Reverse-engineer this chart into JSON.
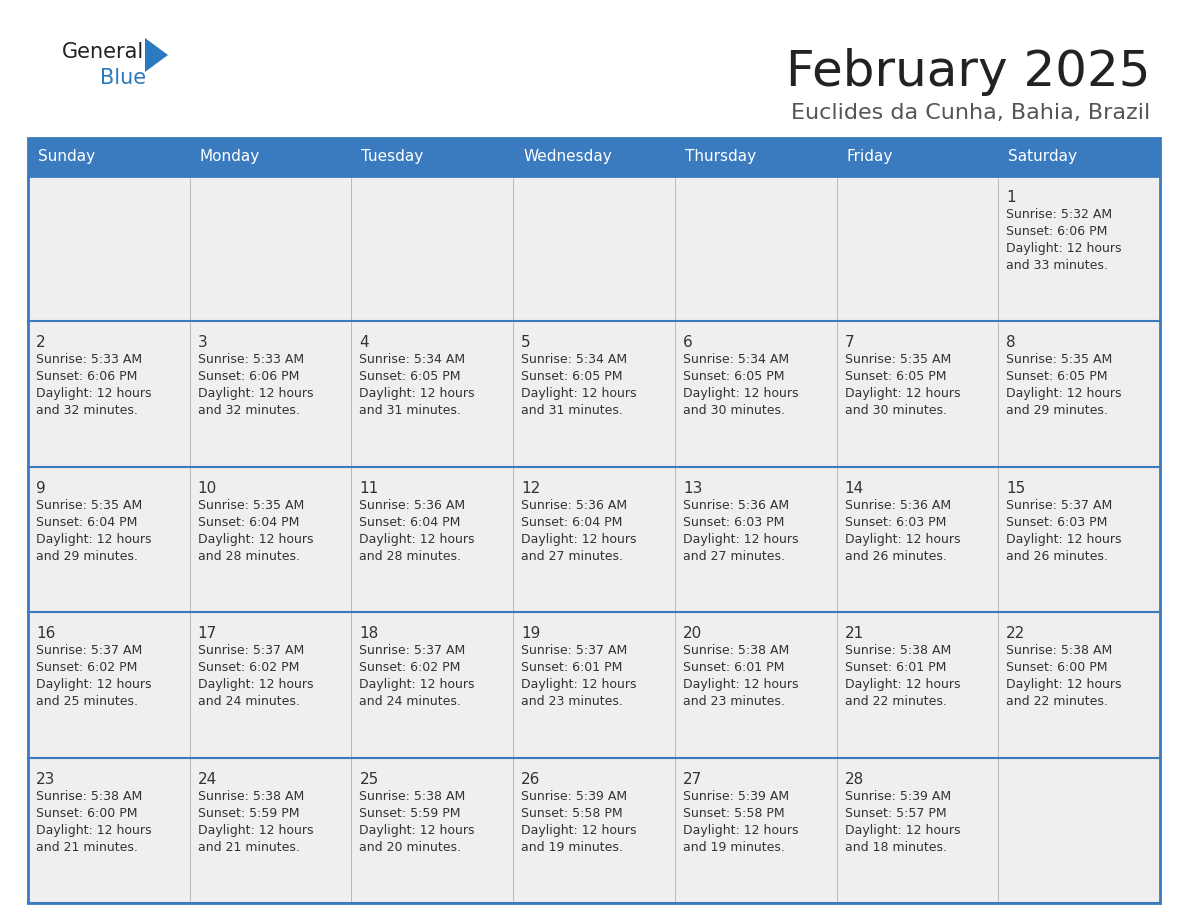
{
  "title": "February 2025",
  "subtitle": "Euclides da Cunha, Bahia, Brazil",
  "days_of_week": [
    "Sunday",
    "Monday",
    "Tuesday",
    "Wednesday",
    "Thursday",
    "Friday",
    "Saturday"
  ],
  "header_bg_color": "#3a7abf",
  "header_text_color": "#ffffff",
  "cell_bg_color": "#efefef",
  "border_color": "#3a7abf",
  "row_line_color": "#3a7abf",
  "text_color": "#333333",
  "date_color": "#333333",
  "logo_general_color": "#222222",
  "logo_blue_color": "#2b7abf",
  "background_color": "#ffffff",
  "title_color": "#222222",
  "subtitle_color": "#555555",
  "calendar_data": [
    [
      null,
      null,
      null,
      null,
      null,
      null,
      {
        "day": "1",
        "sunrise": "5:32 AM",
        "sunset": "6:06 PM",
        "daylight_line1": "12 hours",
        "daylight_line2": "and 33 minutes."
      }
    ],
    [
      {
        "day": "2",
        "sunrise": "5:33 AM",
        "sunset": "6:06 PM",
        "daylight_line1": "12 hours",
        "daylight_line2": "and 32 minutes."
      },
      {
        "day": "3",
        "sunrise": "5:33 AM",
        "sunset": "6:06 PM",
        "daylight_line1": "12 hours",
        "daylight_line2": "and 32 minutes."
      },
      {
        "day": "4",
        "sunrise": "5:34 AM",
        "sunset": "6:05 PM",
        "daylight_line1": "12 hours",
        "daylight_line2": "and 31 minutes."
      },
      {
        "day": "5",
        "sunrise": "5:34 AM",
        "sunset": "6:05 PM",
        "daylight_line1": "12 hours",
        "daylight_line2": "and 31 minutes."
      },
      {
        "day": "6",
        "sunrise": "5:34 AM",
        "sunset": "6:05 PM",
        "daylight_line1": "12 hours",
        "daylight_line2": "and 30 minutes."
      },
      {
        "day": "7",
        "sunrise": "5:35 AM",
        "sunset": "6:05 PM",
        "daylight_line1": "12 hours",
        "daylight_line2": "and 30 minutes."
      },
      {
        "day": "8",
        "sunrise": "5:35 AM",
        "sunset": "6:05 PM",
        "daylight_line1": "12 hours",
        "daylight_line2": "and 29 minutes."
      }
    ],
    [
      {
        "day": "9",
        "sunrise": "5:35 AM",
        "sunset": "6:04 PM",
        "daylight_line1": "12 hours",
        "daylight_line2": "and 29 minutes."
      },
      {
        "day": "10",
        "sunrise": "5:35 AM",
        "sunset": "6:04 PM",
        "daylight_line1": "12 hours",
        "daylight_line2": "and 28 minutes."
      },
      {
        "day": "11",
        "sunrise": "5:36 AM",
        "sunset": "6:04 PM",
        "daylight_line1": "12 hours",
        "daylight_line2": "and 28 minutes."
      },
      {
        "day": "12",
        "sunrise": "5:36 AM",
        "sunset": "6:04 PM",
        "daylight_line1": "12 hours",
        "daylight_line2": "and 27 minutes."
      },
      {
        "day": "13",
        "sunrise": "5:36 AM",
        "sunset": "6:03 PM",
        "daylight_line1": "12 hours",
        "daylight_line2": "and 27 minutes."
      },
      {
        "day": "14",
        "sunrise": "5:36 AM",
        "sunset": "6:03 PM",
        "daylight_line1": "12 hours",
        "daylight_line2": "and 26 minutes."
      },
      {
        "day": "15",
        "sunrise": "5:37 AM",
        "sunset": "6:03 PM",
        "daylight_line1": "12 hours",
        "daylight_line2": "and 26 minutes."
      }
    ],
    [
      {
        "day": "16",
        "sunrise": "5:37 AM",
        "sunset": "6:02 PM",
        "daylight_line1": "12 hours",
        "daylight_line2": "and 25 minutes."
      },
      {
        "day": "17",
        "sunrise": "5:37 AM",
        "sunset": "6:02 PM",
        "daylight_line1": "12 hours",
        "daylight_line2": "and 24 minutes."
      },
      {
        "day": "18",
        "sunrise": "5:37 AM",
        "sunset": "6:02 PM",
        "daylight_line1": "12 hours",
        "daylight_line2": "and 24 minutes."
      },
      {
        "day": "19",
        "sunrise": "5:37 AM",
        "sunset": "6:01 PM",
        "daylight_line1": "12 hours",
        "daylight_line2": "and 23 minutes."
      },
      {
        "day": "20",
        "sunrise": "5:38 AM",
        "sunset": "6:01 PM",
        "daylight_line1": "12 hours",
        "daylight_line2": "and 23 minutes."
      },
      {
        "day": "21",
        "sunrise": "5:38 AM",
        "sunset": "6:01 PM",
        "daylight_line1": "12 hours",
        "daylight_line2": "and 22 minutes."
      },
      {
        "day": "22",
        "sunrise": "5:38 AM",
        "sunset": "6:00 PM",
        "daylight_line1": "12 hours",
        "daylight_line2": "and 22 minutes."
      }
    ],
    [
      {
        "day": "23",
        "sunrise": "5:38 AM",
        "sunset": "6:00 PM",
        "daylight_line1": "12 hours",
        "daylight_line2": "and 21 minutes."
      },
      {
        "day": "24",
        "sunrise": "5:38 AM",
        "sunset": "5:59 PM",
        "daylight_line1": "12 hours",
        "daylight_line2": "and 21 minutes."
      },
      {
        "day": "25",
        "sunrise": "5:38 AM",
        "sunset": "5:59 PM",
        "daylight_line1": "12 hours",
        "daylight_line2": "and 20 minutes."
      },
      {
        "day": "26",
        "sunrise": "5:39 AM",
        "sunset": "5:58 PM",
        "daylight_line1": "12 hours",
        "daylight_line2": "and 19 minutes."
      },
      {
        "day": "27",
        "sunrise": "5:39 AM",
        "sunset": "5:58 PM",
        "daylight_line1": "12 hours",
        "daylight_line2": "and 19 minutes."
      },
      {
        "day": "28",
        "sunrise": "5:39 AM",
        "sunset": "5:57 PM",
        "daylight_line1": "12 hours",
        "daylight_line2": "and 18 minutes."
      },
      null
    ]
  ]
}
